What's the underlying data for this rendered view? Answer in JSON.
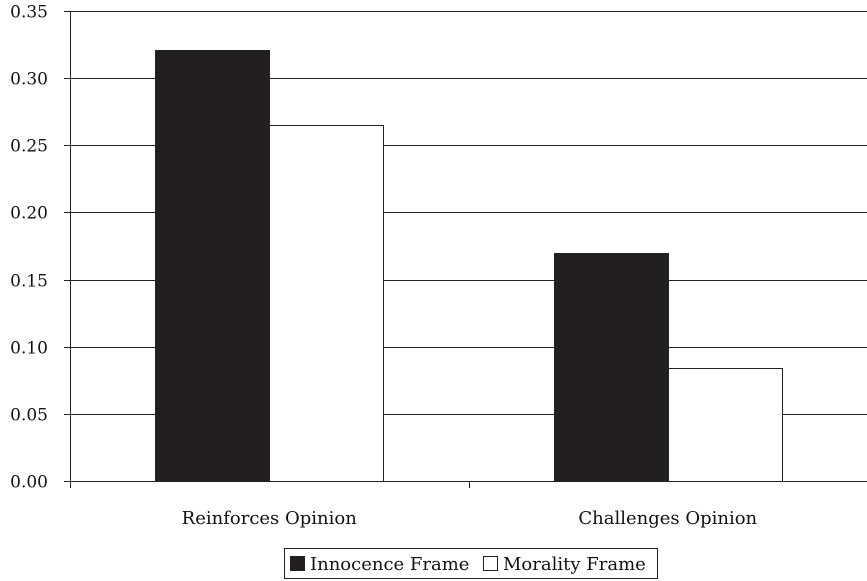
{
  "chart_data": {
    "type": "bar",
    "categories": [
      "Reinforces Opinion",
      "Challenges Opinion"
    ],
    "series": [
      {
        "name": "Innocence Frame",
        "values": [
          0.321,
          0.17
        ],
        "color": "#231f20"
      },
      {
        "name": "Morality Frame",
        "values": [
          0.265,
          0.084
        ],
        "color": "#ffffff"
      }
    ],
    "title": "",
    "xlabel": "",
    "ylabel": "",
    "ylim": [
      0,
      0.35
    ],
    "yticks": [
      "0.00",
      "0.05",
      "0.10",
      "0.15",
      "0.20",
      "0.25",
      "0.30",
      "0.35"
    ],
    "grid": true,
    "legend_position": "bottom-center"
  }
}
